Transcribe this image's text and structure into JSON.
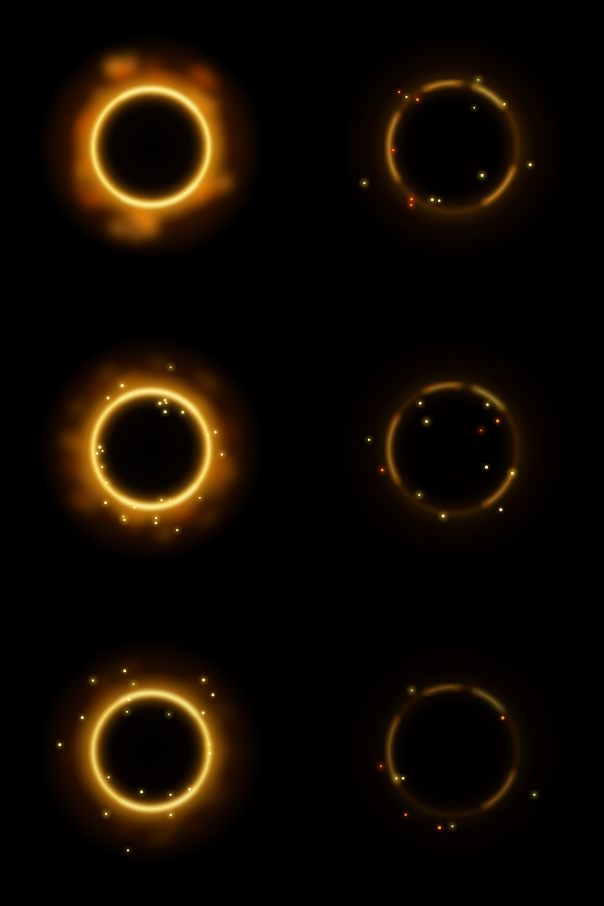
{
  "sprite_sheet": {
    "background": "#000000",
    "palette": {
      "core": "#fff6b0",
      "bright": "#ffd23a",
      "mid": "#ff9a10",
      "deep": "#c84a00",
      "ember": "#ff3a10"
    },
    "frames": [
      {
        "label": "fire-ring-full",
        "glow": 1.0,
        "flames": 1.0,
        "sparks": 0,
        "arc_fade": 0.0
      },
      {
        "label": "fire-ring-arcs-bright",
        "glow": 0.35,
        "flames": 0.0,
        "sparks": 14,
        "arc_fade": 0.55
      },
      {
        "label": "fire-ring-sparking",
        "glow": 0.85,
        "flames": 0.55,
        "sparks": 26,
        "arc_fade": 0.0
      },
      {
        "label": "fire-ring-arcs-fading",
        "glow": 0.25,
        "flames": 0.0,
        "sparks": 12,
        "arc_fade": 0.7
      },
      {
        "label": "fire-ring-dim",
        "glow": 0.65,
        "flames": 0.2,
        "sparks": 20,
        "arc_fade": 0.15
      },
      {
        "label": "fire-ring-arcs-faint",
        "glow": 0.15,
        "flames": 0.0,
        "sparks": 9,
        "arc_fade": 0.85
      }
    ]
  }
}
